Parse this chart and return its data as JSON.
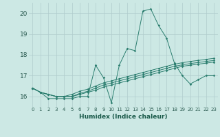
{
  "title": "",
  "xlabel": "Humidex (Indice chaleur)",
  "ylabel": "",
  "xlim": [
    -0.5,
    23.5
  ],
  "ylim": [
    15.5,
    20.5
  ],
  "xticks": [
    0,
    1,
    2,
    3,
    4,
    5,
    6,
    7,
    8,
    9,
    10,
    11,
    12,
    13,
    14,
    15,
    16,
    17,
    18,
    19,
    20,
    21,
    22,
    23
  ],
  "yticks": [
    16,
    17,
    18,
    19,
    20
  ],
  "bg_color": "#cce8e4",
  "grid_color": "#b0cccc",
  "line_color": "#2a7d6e",
  "lines": [
    [
      16.4,
      16.2,
      15.9,
      15.9,
      15.9,
      15.9,
      16.0,
      16.0,
      17.5,
      16.9,
      15.7,
      17.5,
      18.3,
      18.2,
      20.1,
      20.2,
      19.4,
      18.8,
      17.6,
      17.0,
      16.6,
      16.8,
      17.0,
      17.0
    ],
    [
      16.4,
      16.2,
      16.1,
      16.0,
      16.0,
      16.0,
      16.1,
      16.2,
      16.3,
      16.45,
      16.55,
      16.65,
      16.75,
      16.85,
      16.95,
      17.05,
      17.15,
      17.25,
      17.35,
      17.45,
      17.5,
      17.55,
      17.6,
      17.65
    ],
    [
      16.4,
      16.2,
      16.1,
      16.0,
      16.0,
      16.0,
      16.15,
      16.25,
      16.4,
      16.55,
      16.65,
      16.75,
      16.85,
      16.95,
      17.05,
      17.15,
      17.25,
      17.35,
      17.45,
      17.52,
      17.58,
      17.63,
      17.68,
      17.73
    ],
    [
      16.4,
      16.2,
      16.1,
      16.0,
      16.0,
      16.1,
      16.25,
      16.35,
      16.5,
      16.65,
      16.75,
      16.85,
      16.95,
      17.05,
      17.15,
      17.25,
      17.35,
      17.45,
      17.55,
      17.62,
      17.68,
      17.73,
      17.78,
      17.83
    ]
  ]
}
